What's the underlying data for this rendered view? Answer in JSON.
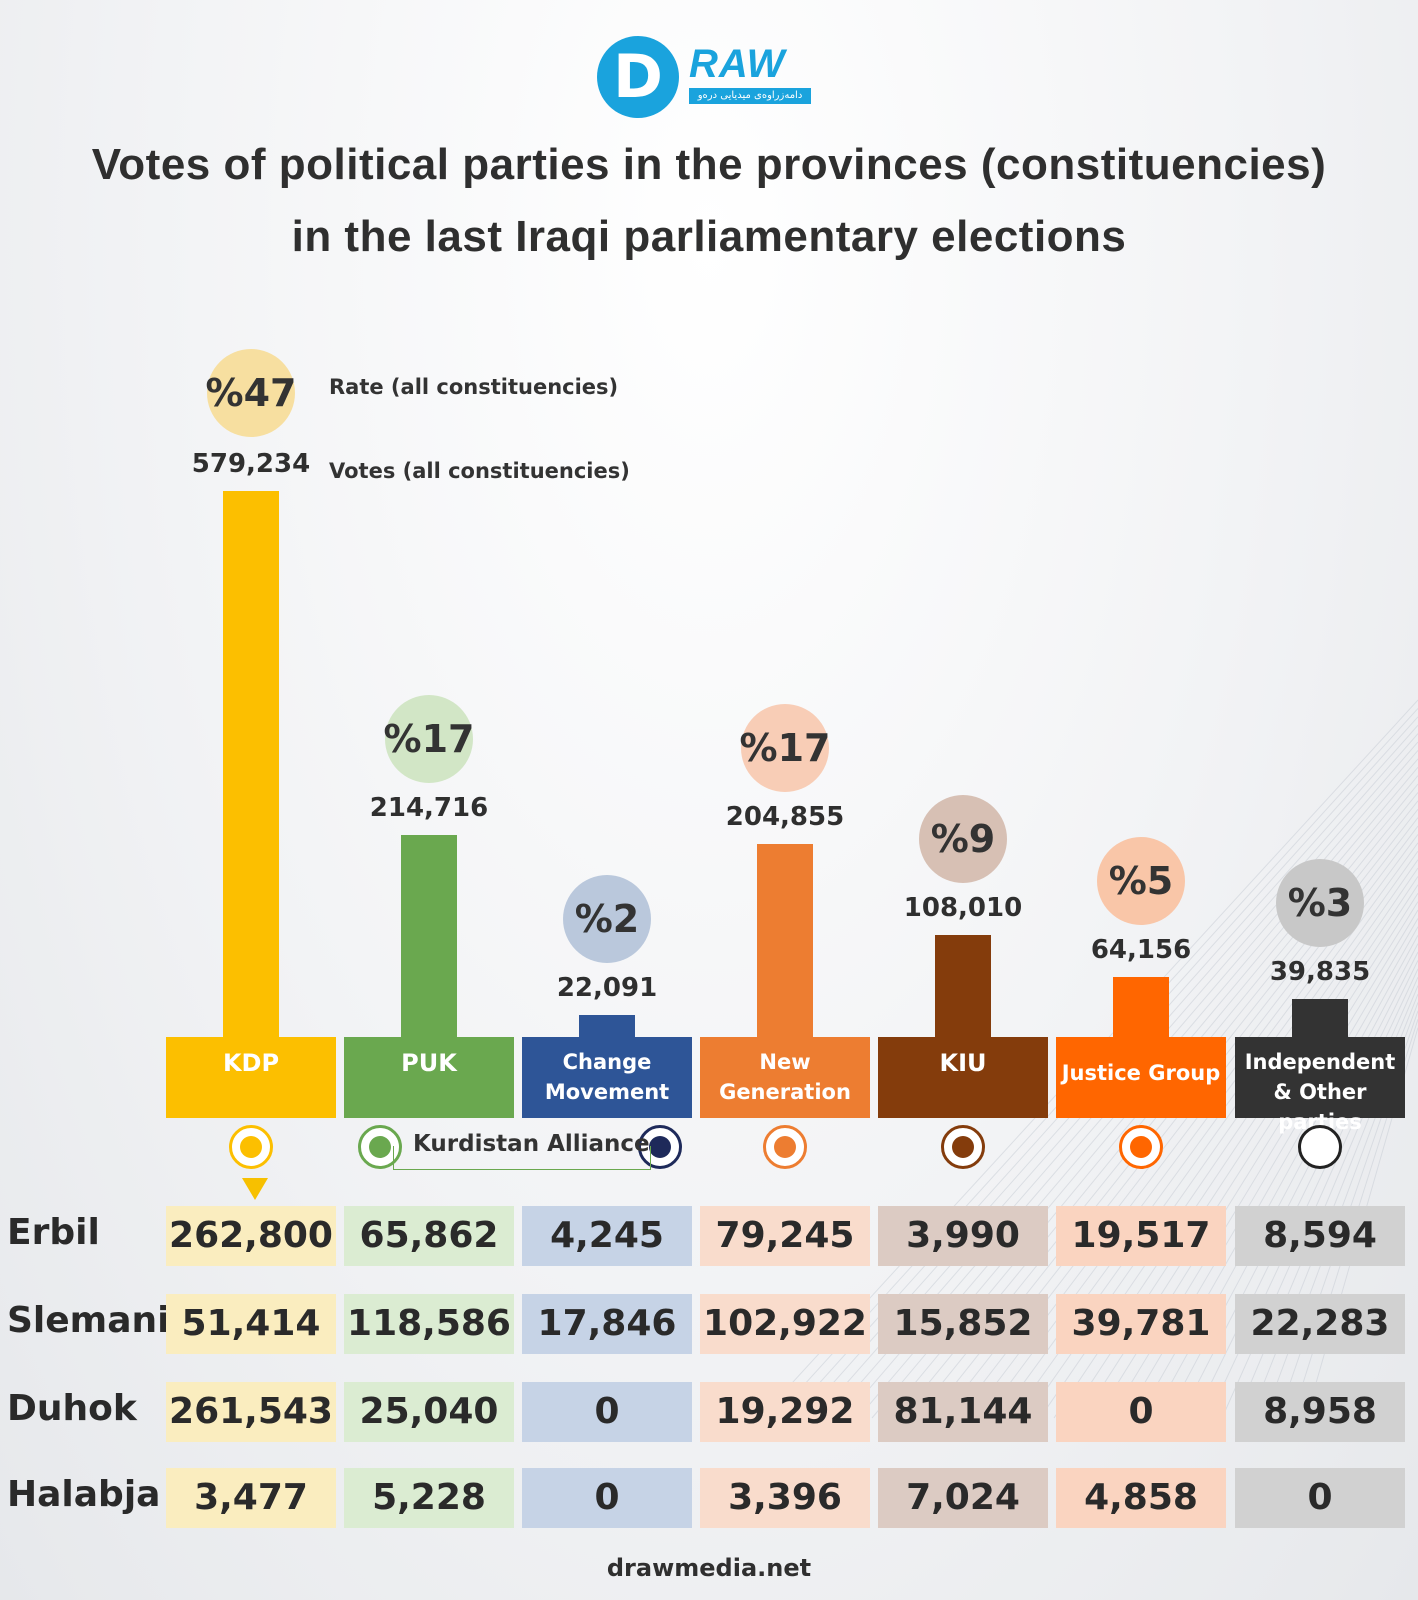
{
  "logo": {
    "letter": "D",
    "word": "RAW",
    "tagline": "دامەزراوەی میدیایی درەو"
  },
  "title_line1": "Votes of political parties in the provinces (constituencies)",
  "title_line2": "in the last Iraqi parliamentary elections",
  "legend": {
    "rate_label": "Rate (all constituencies)",
    "votes_label": "Votes (all constituencies)"
  },
  "alliance_label": "Kurdistan Alliance",
  "footer": "drawmedia.net",
  "chart_data": {
    "type": "bar",
    "categories": [
      "KDP",
      "PUK",
      "Change Movement",
      "New Generation",
      "KIU",
      "Justice Group",
      "Independent & Other parties"
    ],
    "values": [
      579234,
      214716,
      22091,
      204855,
      108010,
      64156,
      39835
    ],
    "value_labels": [
      "579,234",
      "214,716",
      "22,091",
      "204,855",
      "108,010",
      "64,156",
      "39,835"
    ],
    "rates": [
      "%47",
      "%17",
      "%2",
      "%17",
      "%9",
      "%5",
      "%3"
    ],
    "bar_colors": [
      "#fcbf00",
      "#6aa84f",
      "#2e5597",
      "#ed7d31",
      "#843c0c",
      "#ff6600",
      "#333333"
    ],
    "circle_colors": [
      "#f7dfa0",
      "#d2e6c6",
      "#bac8dc",
      "#f8cdb6",
      "#d7c0b4",
      "#f9c6a8",
      "#c8c8c8"
    ],
    "cell_colors": [
      "#faedbf",
      "#dbecd2",
      "#c6d3e6",
      "#f9dccc",
      "#dccbc3",
      "#fad4c0",
      "#d1d1d1"
    ],
    "provinces": [
      "Erbil",
      "Slemani",
      "Duhok",
      "Halabja"
    ],
    "table": [
      [
        "262,800",
        "65,862",
        "4,245",
        "79,245",
        "3,990",
        "19,517",
        "8,594"
      ],
      [
        "51,414",
        "118,586",
        "17,846",
        "102,922",
        "15,852",
        "39,781",
        "22,283"
      ],
      [
        "261,543",
        "25,040",
        "0",
        "19,292",
        "81,144",
        "0",
        "8,958"
      ],
      [
        "3,477",
        "5,228",
        "0",
        "3,396",
        "7,024",
        "4,858",
        "0"
      ]
    ]
  }
}
